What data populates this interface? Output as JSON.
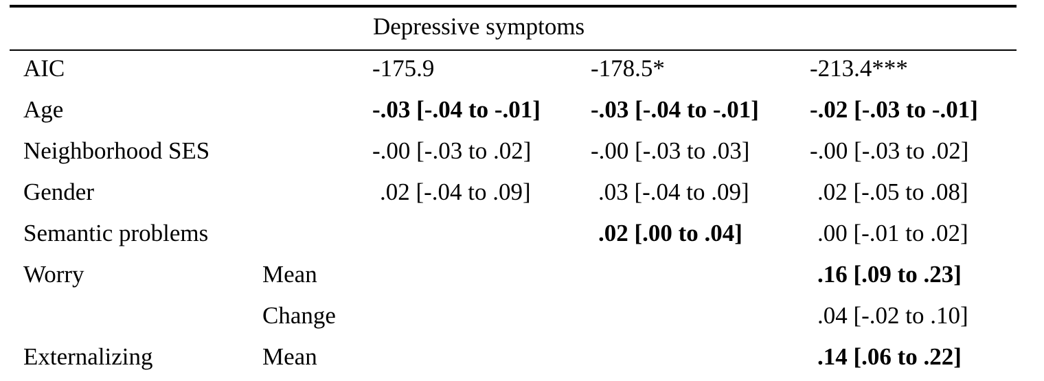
{
  "table": {
    "header": "Depressive symptoms",
    "rows": [
      {
        "label": "AIC",
        "sub": "",
        "m1": "-175.9",
        "m2": "-178.5*",
        "m3": "-213.4***",
        "bold": [
          false,
          false,
          false
        ]
      },
      {
        "label": "Age",
        "sub": "",
        "m1": "-.03 [-.04 to -.01]",
        "m2": "-.03 [-.04 to -.01]",
        "m3": "-.02 [-.03 to -.01]",
        "bold": [
          true,
          true,
          true
        ]
      },
      {
        "label": "Neighborhood SES",
        "sub": "",
        "m1": "-.00 [-.03 to .02]",
        "m2": "-.00 [-.03 to .03]",
        "m3": "-.00 [-.03 to .02]",
        "bold": [
          false,
          false,
          false
        ]
      },
      {
        "label": "Gender",
        "sub": "",
        "m1": ".02 [-.04 to .09]",
        "m2": ".03 [-.04 to .09]",
        "m3": ".02 [-.05 to .08]",
        "bold": [
          false,
          false,
          false
        ]
      },
      {
        "label": "Semantic problems",
        "sub": "",
        "m1": "",
        "m2": ".02 [.00 to .04]",
        "m3": ".00 [-.01 to .02]",
        "bold": [
          false,
          true,
          false
        ]
      },
      {
        "label": "Worry",
        "sub": "Mean",
        "m1": "",
        "m2": "",
        "m3": ".16 [.09 to .23]",
        "bold": [
          false,
          false,
          true
        ]
      },
      {
        "label": "",
        "sub": "Change",
        "m1": "",
        "m2": "",
        "m3": ".04 [-.02 to .10]",
        "bold": [
          false,
          false,
          false
        ]
      },
      {
        "label": "Externalizing",
        "sub": "Mean",
        "m1": "",
        "m2": "",
        "m3": ".14 [.06 to .22]",
        "bold": [
          false,
          false,
          true
        ]
      }
    ]
  }
}
